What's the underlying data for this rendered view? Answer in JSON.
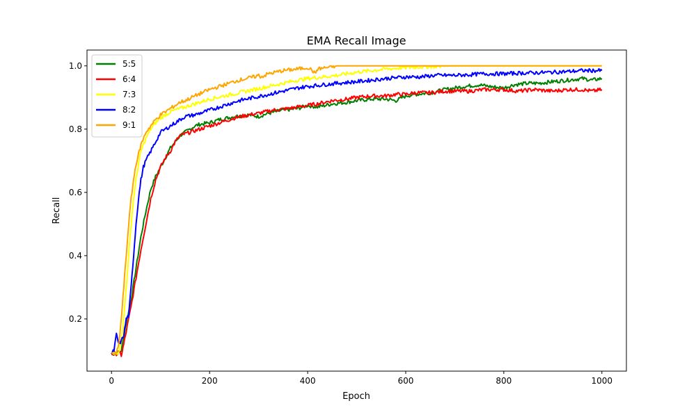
{
  "chart_data": {
    "type": "line",
    "title": "EMA Recall Image",
    "xlabel": "Epoch",
    "ylabel": "Recall",
    "xlim": [
      -50,
      1050
    ],
    "ylim": [
      0.035,
      1.05
    ],
    "xticks": [
      "0",
      "200",
      "400",
      "600",
      "800",
      "1000"
    ],
    "yticks": [
      "0.2",
      "0.4",
      "0.6",
      "0.8",
      "1.0"
    ],
    "legend_position": "upper-left",
    "grid": false,
    "series": [
      {
        "name": "5:5",
        "color": "#008000",
        "points": [
          [
            0,
            0.09
          ],
          [
            10,
            0.09
          ],
          [
            20,
            0.1
          ],
          [
            30,
            0.19
          ],
          [
            40,
            0.26
          ],
          [
            50,
            0.36
          ],
          [
            60,
            0.46
          ],
          [
            70,
            0.54
          ],
          [
            80,
            0.61
          ],
          [
            90,
            0.65
          ],
          [
            100,
            0.68
          ],
          [
            110,
            0.71
          ],
          [
            120,
            0.74
          ],
          [
            130,
            0.76
          ],
          [
            140,
            0.78
          ],
          [
            150,
            0.79
          ],
          [
            160,
            0.8
          ],
          [
            170,
            0.81
          ],
          [
            180,
            0.815
          ],
          [
            200,
            0.82
          ],
          [
            220,
            0.83
          ],
          [
            250,
            0.84
          ],
          [
            280,
            0.845
          ],
          [
            300,
            0.84
          ],
          [
            320,
            0.85
          ],
          [
            350,
            0.86
          ],
          [
            380,
            0.865
          ],
          [
            400,
            0.875
          ],
          [
            420,
            0.87
          ],
          [
            450,
            0.88
          ],
          [
            480,
            0.885
          ],
          [
            500,
            0.89
          ],
          [
            530,
            0.895
          ],
          [
            560,
            0.895
          ],
          [
            580,
            0.89
          ],
          [
            600,
            0.905
          ],
          [
            620,
            0.91
          ],
          [
            650,
            0.915
          ],
          [
            680,
            0.925
          ],
          [
            700,
            0.93
          ],
          [
            720,
            0.935
          ],
          [
            750,
            0.94
          ],
          [
            770,
            0.935
          ],
          [
            800,
            0.93
          ],
          [
            820,
            0.94
          ],
          [
            850,
            0.945
          ],
          [
            870,
            0.945
          ],
          [
            900,
            0.95
          ],
          [
            930,
            0.955
          ],
          [
            960,
            0.96
          ],
          [
            980,
            0.955
          ],
          [
            1000,
            0.96
          ]
        ]
      },
      {
        "name": "6:4",
        "color": "#ff0000",
        "points": [
          [
            0,
            0.09
          ],
          [
            10,
            0.09
          ],
          [
            15,
            0.095
          ],
          [
            20,
            0.085
          ],
          [
            25,
            0.12
          ],
          [
            30,
            0.16
          ],
          [
            40,
            0.24
          ],
          [
            50,
            0.33
          ],
          [
            60,
            0.42
          ],
          [
            70,
            0.5
          ],
          [
            80,
            0.58
          ],
          [
            90,
            0.64
          ],
          [
            100,
            0.68
          ],
          [
            110,
            0.71
          ],
          [
            120,
            0.73
          ],
          [
            130,
            0.76
          ],
          [
            140,
            0.78
          ],
          [
            150,
            0.785
          ],
          [
            160,
            0.79
          ],
          [
            180,
            0.8
          ],
          [
            200,
            0.81
          ],
          [
            220,
            0.82
          ],
          [
            250,
            0.835
          ],
          [
            280,
            0.845
          ],
          [
            300,
            0.85
          ],
          [
            330,
            0.86
          ],
          [
            360,
            0.865
          ],
          [
            400,
            0.875
          ],
          [
            420,
            0.88
          ],
          [
            450,
            0.89
          ],
          [
            480,
            0.895
          ],
          [
            500,
            0.9
          ],
          [
            530,
            0.905
          ],
          [
            560,
            0.905
          ],
          [
            580,
            0.91
          ],
          [
            600,
            0.91
          ],
          [
            620,
            0.915
          ],
          [
            650,
            0.915
          ],
          [
            680,
            0.92
          ],
          [
            700,
            0.92
          ],
          [
            730,
            0.92
          ],
          [
            760,
            0.925
          ],
          [
            800,
            0.925
          ],
          [
            830,
            0.92
          ],
          [
            860,
            0.925
          ],
          [
            900,
            0.92
          ],
          [
            930,
            0.925
          ],
          [
            960,
            0.925
          ],
          [
            980,
            0.92
          ],
          [
            1000,
            0.925
          ]
        ]
      },
      {
        "name": "7:3",
        "color": "#ffff00",
        "points": [
          [
            0,
            0.09
          ],
          [
            10,
            0.09
          ],
          [
            15,
            0.1
          ],
          [
            20,
            0.13
          ],
          [
            25,
            0.2
          ],
          [
            30,
            0.3
          ],
          [
            35,
            0.4
          ],
          [
            40,
            0.5
          ],
          [
            45,
            0.58
          ],
          [
            50,
            0.64
          ],
          [
            55,
            0.69
          ],
          [
            60,
            0.73
          ],
          [
            70,
            0.77
          ],
          [
            80,
            0.8
          ],
          [
            90,
            0.82
          ],
          [
            100,
            0.835
          ],
          [
            110,
            0.845
          ],
          [
            120,
            0.855
          ],
          [
            130,
            0.86
          ],
          [
            140,
            0.865
          ],
          [
            150,
            0.87
          ],
          [
            170,
            0.88
          ],
          [
            200,
            0.895
          ],
          [
            230,
            0.905
          ],
          [
            260,
            0.915
          ],
          [
            290,
            0.925
          ],
          [
            320,
            0.935
          ],
          [
            350,
            0.945
          ],
          [
            380,
            0.955
          ],
          [
            400,
            0.96
          ],
          [
            430,
            0.965
          ],
          [
            460,
            0.97
          ],
          [
            500,
            0.98
          ],
          [
            530,
            0.985
          ],
          [
            560,
            0.99
          ],
          [
            600,
            0.995
          ],
          [
            650,
            0.998
          ],
          [
            700,
            1.0
          ],
          [
            750,
            1.0
          ],
          [
            800,
            1.0
          ],
          [
            850,
            1.0
          ],
          [
            900,
            1.0
          ],
          [
            950,
            1.0
          ],
          [
            1000,
            1.0
          ]
        ]
      },
      {
        "name": "8:2",
        "color": "#0000ff",
        "points": [
          [
            0,
            0.09
          ],
          [
            5,
            0.1
          ],
          [
            10,
            0.15
          ],
          [
            15,
            0.12
          ],
          [
            20,
            0.13
          ],
          [
            25,
            0.15
          ],
          [
            30,
            0.2
          ],
          [
            35,
            0.21
          ],
          [
            40,
            0.3
          ],
          [
            45,
            0.4
          ],
          [
            50,
            0.5
          ],
          [
            55,
            0.58
          ],
          [
            60,
            0.64
          ],
          [
            65,
            0.68
          ],
          [
            70,
            0.7
          ],
          [
            80,
            0.73
          ],
          [
            90,
            0.76
          ],
          [
            100,
            0.79
          ],
          [
            110,
            0.8
          ],
          [
            120,
            0.81
          ],
          [
            130,
            0.82
          ],
          [
            140,
            0.83
          ],
          [
            150,
            0.84
          ],
          [
            170,
            0.845
          ],
          [
            200,
            0.86
          ],
          [
            230,
            0.875
          ],
          [
            260,
            0.89
          ],
          [
            290,
            0.9
          ],
          [
            320,
            0.91
          ],
          [
            350,
            0.92
          ],
          [
            380,
            0.93
          ],
          [
            400,
            0.935
          ],
          [
            430,
            0.94
          ],
          [
            460,
            0.945
          ],
          [
            500,
            0.95
          ],
          [
            530,
            0.955
          ],
          [
            560,
            0.96
          ],
          [
            600,
            0.965
          ],
          [
            630,
            0.965
          ],
          [
            660,
            0.97
          ],
          [
            700,
            0.97
          ],
          [
            730,
            0.972
          ],
          [
            760,
            0.975
          ],
          [
            800,
            0.975
          ],
          [
            830,
            0.977
          ],
          [
            860,
            0.978
          ],
          [
            900,
            0.98
          ],
          [
            930,
            0.982
          ],
          [
            960,
            0.985
          ],
          [
            980,
            0.985
          ],
          [
            1000,
            0.985
          ]
        ]
      },
      {
        "name": "9:1",
        "color": "#ffa500",
        "points": [
          [
            0,
            0.09
          ],
          [
            10,
            0.09
          ],
          [
            15,
            0.12
          ],
          [
            20,
            0.2
          ],
          [
            25,
            0.3
          ],
          [
            30,
            0.4
          ],
          [
            35,
            0.5
          ],
          [
            40,
            0.58
          ],
          [
            45,
            0.64
          ],
          [
            50,
            0.69
          ],
          [
            55,
            0.72
          ],
          [
            60,
            0.75
          ],
          [
            70,
            0.79
          ],
          [
            80,
            0.81
          ],
          [
            90,
            0.83
          ],
          [
            100,
            0.845
          ],
          [
            110,
            0.855
          ],
          [
            120,
            0.865
          ],
          [
            130,
            0.875
          ],
          [
            140,
            0.885
          ],
          [
            150,
            0.89
          ],
          [
            170,
            0.905
          ],
          [
            200,
            0.925
          ],
          [
            230,
            0.94
          ],
          [
            260,
            0.955
          ],
          [
            290,
            0.965
          ],
          [
            300,
            0.97
          ],
          [
            305,
            0.965
          ],
          [
            320,
            0.975
          ],
          [
            350,
            0.985
          ],
          [
            380,
            0.99
          ],
          [
            400,
            0.995
          ],
          [
            410,
            0.985
          ],
          [
            415,
            0.975
          ],
          [
            420,
            0.99
          ],
          [
            440,
            0.995
          ],
          [
            460,
            1.0
          ],
          [
            500,
            1.0
          ],
          [
            550,
            1.0
          ],
          [
            600,
            1.0
          ],
          [
            650,
            1.0
          ],
          [
            700,
            1.0
          ],
          [
            750,
            1.0
          ],
          [
            800,
            1.0
          ],
          [
            850,
            1.0
          ],
          [
            900,
            1.0
          ],
          [
            950,
            1.0
          ],
          [
            1000,
            1.0
          ]
        ]
      }
    ]
  }
}
